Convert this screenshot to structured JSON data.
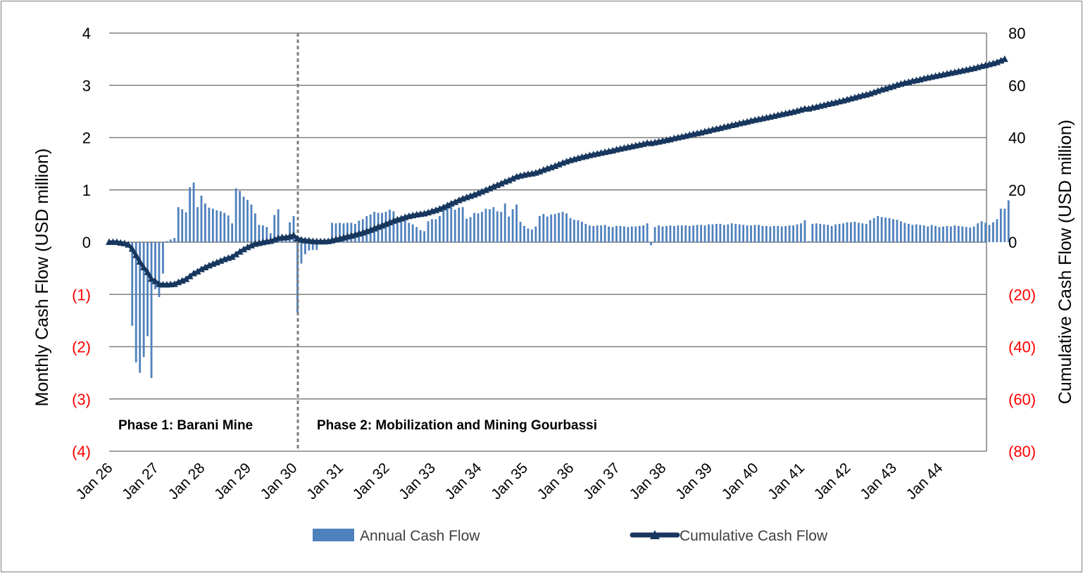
{
  "chart_data": {
    "type": "bar+line",
    "y_left": {
      "label": "Monthly Cash Flow (USD million)",
      "range": [
        -4,
        4
      ],
      "ticks": [
        4,
        3,
        2,
        1,
        0,
        -1,
        -2,
        -3,
        -4
      ],
      "tick_labels": [
        "4",
        "3",
        "2",
        "1",
        "0",
        "(1)",
        "(2)",
        "(3)",
        "(4)"
      ]
    },
    "y_right": {
      "label": "Cumulative Cash Flow (USD million)",
      "range": [
        -80,
        80
      ],
      "ticks": [
        80,
        60,
        40,
        20,
        0,
        -20,
        -40,
        -60,
        -80
      ],
      "tick_labels": [
        "80",
        "60",
        "40",
        "20",
        "0",
        "(20)",
        "(40)",
        "(60)",
        "(80)"
      ]
    },
    "x_tick_labels": [
      "Jan 26",
      "Jan 27",
      "Jan 28",
      "Jan 29",
      "Jan 30",
      "Jan 31",
      "Jan 32",
      "Jan 33",
      "Jan 34",
      "Jan 35",
      "Jan 36",
      "Jan 37",
      "Jan 38",
      "Jan 39",
      "Jan 40",
      "Jan 41",
      "Jan 42",
      "Jan 43",
      "Jan 44"
    ],
    "grid": true,
    "negative_tick_color": "#ff0000",
    "phase_divider_at": "Jan 30",
    "annotations": [
      "Phase 1: Barani Mine",
      "Phase 2: Mobilization and Mining Gourbassi"
    ],
    "series": [
      {
        "name": "Annual Cash Flow",
        "type": "bar",
        "axis": "left",
        "color": "#4f81bd",
        "x_start": "Jan 26",
        "values": [
          0,
          0,
          0,
          0,
          0,
          0,
          -1.6,
          -2.3,
          -2.5,
          -2.2,
          -1.8,
          -2.6,
          -0.9,
          -1.05,
          -0.6,
          0.02,
          0.05,
          0.08,
          0.67,
          0.63,
          0.57,
          1.05,
          1.14,
          0.67,
          0.89,
          0.74,
          0.66,
          0.64,
          0.61,
          0.59,
          0.56,
          0.51,
          0.36,
          1.03,
          0.98,
          0.87,
          0.81,
          0.72,
          0.55,
          0.33,
          0.32,
          0.29,
          0.17,
          0.52,
          0.63,
          0.15,
          0.08,
          0.38,
          0.5,
          -1.35,
          -0.41,
          -0.23,
          -0.16,
          -0.15,
          -0.15,
          0.03,
          0.02,
          0.02,
          0.37,
          0.36,
          0.37,
          0.36,
          0.37,
          0.37,
          0.35,
          0.41,
          0.44,
          0.5,
          0.53,
          0.58,
          0.56,
          0.56,
          0.58,
          0.62,
          0.59,
          0.47,
          0.45,
          0.44,
          0.37,
          0.34,
          0.29,
          0.23,
          0.21,
          0.4,
          0.44,
          0.44,
          0.5,
          0.61,
          0.67,
          0.72,
          0.62,
          0.66,
          0.67,
          0.45,
          0.48,
          0.56,
          0.55,
          0.58,
          0.64,
          0.63,
          0.67,
          0.59,
          0.58,
          0.74,
          0.49,
          0.63,
          0.72,
          0.39,
          0.31,
          0.26,
          0.24,
          0.3,
          0.5,
          0.54,
          0.49,
          0.53,
          0.54,
          0.56,
          0.58,
          0.55,
          0.46,
          0.43,
          0.42,
          0.39,
          0.35,
          0.32,
          0.31,
          0.32,
          0.32,
          0.33,
          0.3,
          0.29,
          0.31,
          0.31,
          0.3,
          0.29,
          0.3,
          0.3,
          0.31,
          0.32,
          0.36,
          -0.06,
          0.29,
          0.32,
          0.3,
          0.31,
          0.32,
          0.31,
          0.32,
          0.32,
          0.32,
          0.31,
          0.32,
          0.33,
          0.33,
          0.32,
          0.34,
          0.34,
          0.35,
          0.35,
          0.33,
          0.34,
          0.36,
          0.35,
          0.34,
          0.33,
          0.32,
          0.32,
          0.33,
          0.33,
          0.31,
          0.31,
          0.3,
          0.31,
          0.31,
          0.3,
          0.31,
          0.32,
          0.32,
          0.34,
          0.36,
          0.42,
          0.02,
          0.35,
          0.36,
          0.35,
          0.34,
          0.33,
          0.31,
          0.34,
          0.35,
          0.36,
          0.38,
          0.38,
          0.39,
          0.37,
          0.36,
          0.35,
          0.42,
          0.46,
          0.5,
          0.48,
          0.47,
          0.46,
          0.44,
          0.43,
          0.4,
          0.37,
          0.35,
          0.33,
          0.34,
          0.33,
          0.32,
          0.3,
          0.33,
          0.31,
          0.29,
          0.3,
          0.31,
          0.3,
          0.32,
          0.31,
          0.3,
          0.29,
          0.28,
          0.3,
          0.36,
          0.4,
          0.37,
          0.33,
          0.38,
          0.44,
          0.64,
          0.64,
          0.8
        ]
      },
      {
        "name": "Cumulative Cash Flow",
        "type": "line",
        "axis": "right",
        "marker": "triangle",
        "color": "#17375e",
        "x_start": "Jan 26",
        "values": [
          0,
          0,
          0,
          -0.3,
          -0.5,
          -1,
          -2.6,
          -5,
          -7.5,
          -9.7,
          -11.5,
          -14.1,
          -15,
          -16.1,
          -16.3,
          -16.3,
          -16.2,
          -16.1,
          -15.4,
          -14.8,
          -14.2,
          -13.1,
          -12,
          -11.3,
          -10.4,
          -9.7,
          -9,
          -8.4,
          -7.8,
          -7.2,
          -6.6,
          -6.1,
          -5.7,
          -4.7,
          -3.7,
          -2.8,
          -2,
          -1.3,
          -0.7,
          -0.4,
          -0.1,
          0.2,
          0.4,
          0.9,
          1.5,
          1.7,
          1.8,
          2.1,
          2.6,
          1.3,
          0.9,
          0.6,
          0.5,
          0.3,
          0.2,
          0.2,
          0.2,
          0.3,
          0.6,
          1,
          1.3,
          1.7,
          2.1,
          2.4,
          2.8,
          3.2,
          3.6,
          4.1,
          4.6,
          5.2,
          5.8,
          6.3,
          6.9,
          7.5,
          8.1,
          8.6,
          9,
          9.5,
          9.9,
          10.2,
          10.5,
          10.7,
          10.9,
          11.3,
          11.8,
          12.2,
          12.7,
          13.3,
          14,
          14.7,
          15.3,
          16,
          16.6,
          17.1,
          17.6,
          18.1,
          18.7,
          19.3,
          19.9,
          20.5,
          21.2,
          21.8,
          22.4,
          23.1,
          23.6,
          24.3,
          25,
          25.4,
          25.7,
          26,
          26.2,
          26.5,
          27,
          27.6,
          28.1,
          28.6,
          29.1,
          29.7,
          30.3,
          30.8,
          31.3,
          31.7,
          32.1,
          32.5,
          32.8,
          33.2,
          33.5,
          33.8,
          34.1,
          34.4,
          34.7,
          35,
          35.4,
          35.7,
          36,
          36.3,
          36.6,
          36.9,
          37.2,
          37.5,
          37.9,
          37.8,
          38.1,
          38.4,
          38.7,
          39,
          39.3,
          39.7,
          40,
          40.3,
          40.6,
          41,
          41.3,
          41.6,
          41.9,
          42.3,
          42.6,
          43,
          43.3,
          43.6,
          44,
          44.3,
          44.7,
          45,
          45.4,
          45.7,
          46,
          46.4,
          46.7,
          47,
          47.3,
          47.6,
          47.9,
          48.2,
          48.6,
          48.9,
          49.2,
          49.5,
          49.8,
          50.2,
          50.6,
          51,
          51,
          51.4,
          51.7,
          52.1,
          52.4,
          52.8,
          53.1,
          53.4,
          53.8,
          54.1,
          54.5,
          54.9,
          55.3,
          55.7,
          56.1,
          56.4,
          56.8,
          57.3,
          57.8,
          58.3,
          58.7,
          59.2,
          59.6,
          60.1,
          60.5,
          60.9,
          61.2,
          61.6,
          61.9,
          62.2,
          62.6,
          62.9,
          63.2,
          63.5,
          63.8,
          64.1,
          64.4,
          64.7,
          65,
          65.3,
          65.6,
          65.9,
          66.2,
          66.5,
          66.9,
          67.3,
          67.6,
          68,
          68.4,
          68.8,
          69.4,
          70
        ]
      }
    ]
  }
}
